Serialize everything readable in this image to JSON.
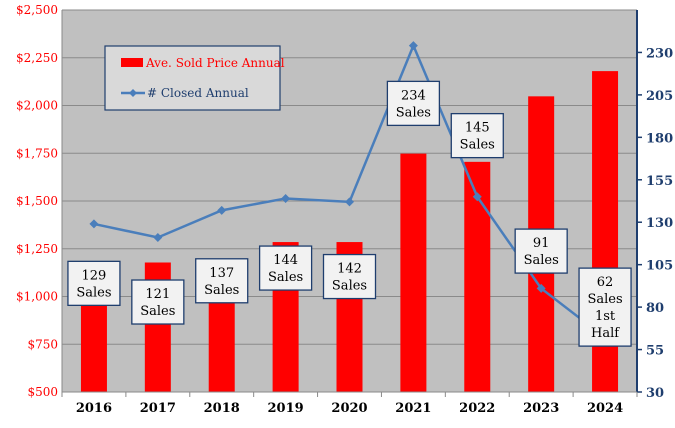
{
  "chart_data": {
    "type": "bar",
    "title": "",
    "xlabel": "",
    "ylabel": "",
    "categories": [
      "2016",
      "2017",
      "2018",
      "2019",
      "2020",
      "2021",
      "2022",
      "2023",
      "2024"
    ],
    "bar_series": {
      "name": "Ave. Sold Price Annual",
      "values": [
        1180,
        1178,
        1195,
        1285,
        1285,
        1748,
        1705,
        2048,
        2180
      ],
      "color": "#ff0000",
      "axis": "left"
    },
    "line_series": {
      "name": "# Closed Annual",
      "values": [
        129,
        121,
        137,
        144,
        142,
        234,
        145,
        91,
        62
      ],
      "color": "#4a7ebb",
      "axis": "right"
    },
    "left_axis": {
      "ylim": [
        500,
        2500
      ],
      "ticks": [
        500,
        750,
        1000,
        1250,
        1500,
        1750,
        2000,
        2250,
        2500
      ],
      "tick_labels": [
        "$500",
        "$750",
        "$1,000",
        "$1,250",
        "$1,500",
        "$1,750",
        "$2,000",
        "$2,250",
        "$2,500"
      ],
      "color": "#ff0000"
    },
    "right_axis": {
      "ylim": [
        30,
        255
      ],
      "ticks": [
        30,
        55,
        80,
        105,
        130,
        155,
        180,
        205,
        230
      ],
      "tick_labels": [
        "30",
        "55",
        "80",
        "105",
        "130",
        "155",
        "180",
        "205",
        "230"
      ],
      "color": "#1f3e6e"
    },
    "annotations": [
      {
        "lines": [
          "129",
          "Sales"
        ],
        "value": 129
      },
      {
        "lines": [
          "121",
          "Sales"
        ],
        "value": 121
      },
      {
        "lines": [
          "137",
          "Sales"
        ],
        "value": 137
      },
      {
        "lines": [
          "144",
          "Sales"
        ],
        "value": 144
      },
      {
        "lines": [
          "142",
          "Sales"
        ],
        "value": 142
      },
      {
        "lines": [
          "234",
          "Sales"
        ],
        "value": 234
      },
      {
        "lines": [
          "145",
          "Sales"
        ],
        "value": 145
      },
      {
        "lines": [
          "91",
          "Sales"
        ],
        "value": 91
      },
      {
        "lines": [
          "62",
          "Sales",
          "1st",
          "Half"
        ],
        "value": 62
      }
    ],
    "legend": {
      "placement": "top-left",
      "entries": [
        "Ave. Sold Price Annual",
        "# Closed Annual"
      ]
    },
    "grid": true,
    "colors": {
      "plot_background": "#c0c0c0",
      "gridline": "#8a8a8a",
      "legend_background": "#d9d9d9",
      "legend_border": "#1f3e6e",
      "annotation_fill": "#f2f2f2",
      "annotation_border": "#1f3e6e",
      "axis_line": "#1f3e6e"
    }
  }
}
